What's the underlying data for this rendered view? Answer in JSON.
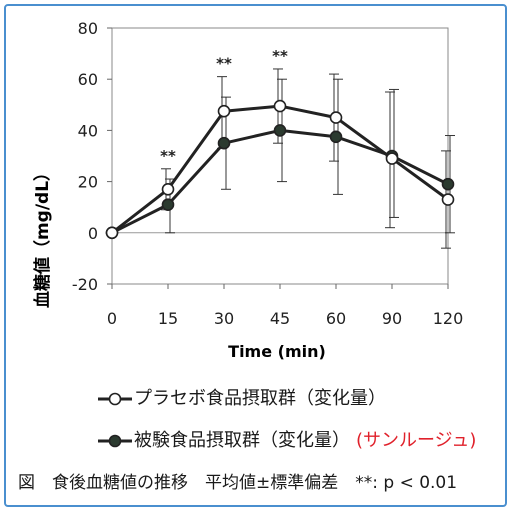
{
  "chart_data": {
    "type": "line",
    "xlabel": "Time (min)",
    "ylabel": "血糖値（mg/dL）",
    "categories": [
      "0",
      "15",
      "30",
      "45",
      "60",
      "90",
      "120"
    ],
    "yticks": [
      -20,
      0,
      20,
      40,
      60,
      80
    ],
    "ylim": [
      -20,
      80
    ],
    "series": [
      {
        "name": "プラセボ食品摂取群（変化量）",
        "marker": "open-circle",
        "color": "#222222",
        "values": [
          0,
          17,
          47.5,
          49.5,
          45,
          29,
          13
        ],
        "error_low": [
          0,
          9,
          33,
          35,
          28,
          2,
          -6
        ],
        "error_high": [
          0,
          25,
          61,
          64,
          62,
          55,
          32
        ]
      },
      {
        "name": "被験食品摂取群（変化量）",
        "marker": "filled-circle",
        "color": "#2b3a2f",
        "values": [
          0,
          11,
          35,
          40,
          37.5,
          30,
          19
        ],
        "error_low": [
          0,
          0,
          17,
          20,
          15,
          6,
          0
        ],
        "error_high": [
          0,
          21,
          53,
          60,
          60,
          56,
          38
        ]
      }
    ],
    "annotations": [
      {
        "category": "15",
        "text": "**"
      },
      {
        "category": "30",
        "text": "**"
      },
      {
        "category": "45",
        "text": "**"
      }
    ],
    "legend": "below",
    "grid": false
  },
  "legend_extra": "(サンルージュ)",
  "caption": "図　食後血糖値の推移　平均値±標準偏差　**: p < 0.01"
}
